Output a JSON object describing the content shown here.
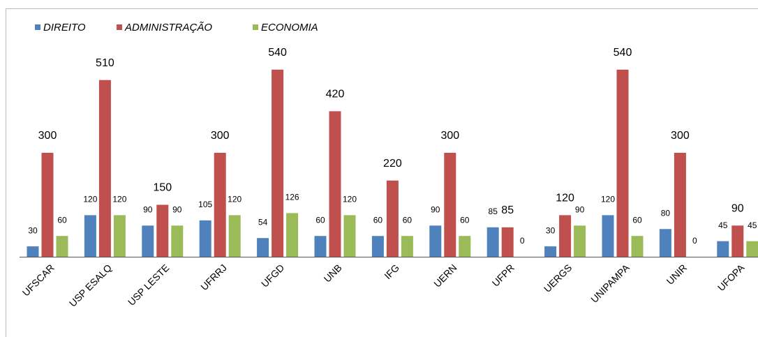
{
  "chart_data": {
    "type": "bar",
    "categories": [
      "UFSCAR",
      "USP ESALQ",
      "USP LESTE",
      "UFRRJ",
      "UFGD",
      "UNB",
      "IFG",
      "UERN",
      "UFPR",
      "UERGS",
      "UNIPAMPA",
      "UNIR",
      "UFOPA"
    ],
    "series": [
      {
        "name": "DIREITO",
        "color": "#4f81bd",
        "values": [
          30,
          120,
          90,
          105,
          54,
          60,
          60,
          90,
          85,
          30,
          120,
          80,
          45
        ]
      },
      {
        "name": "ADMINISTRAÇÃO",
        "color": "#c0504d",
        "values": [
          300,
          510,
          150,
          300,
          540,
          420,
          220,
          300,
          85,
          120,
          540,
          300,
          90
        ]
      },
      {
        "name": "ECONOMIA",
        "color": "#9bbb59",
        "values": [
          60,
          120,
          90,
          120,
          126,
          120,
          60,
          60,
          0,
          90,
          60,
          0,
          45
        ]
      }
    ],
    "ylim": [
      0,
      600
    ],
    "legend": "top-left"
  }
}
